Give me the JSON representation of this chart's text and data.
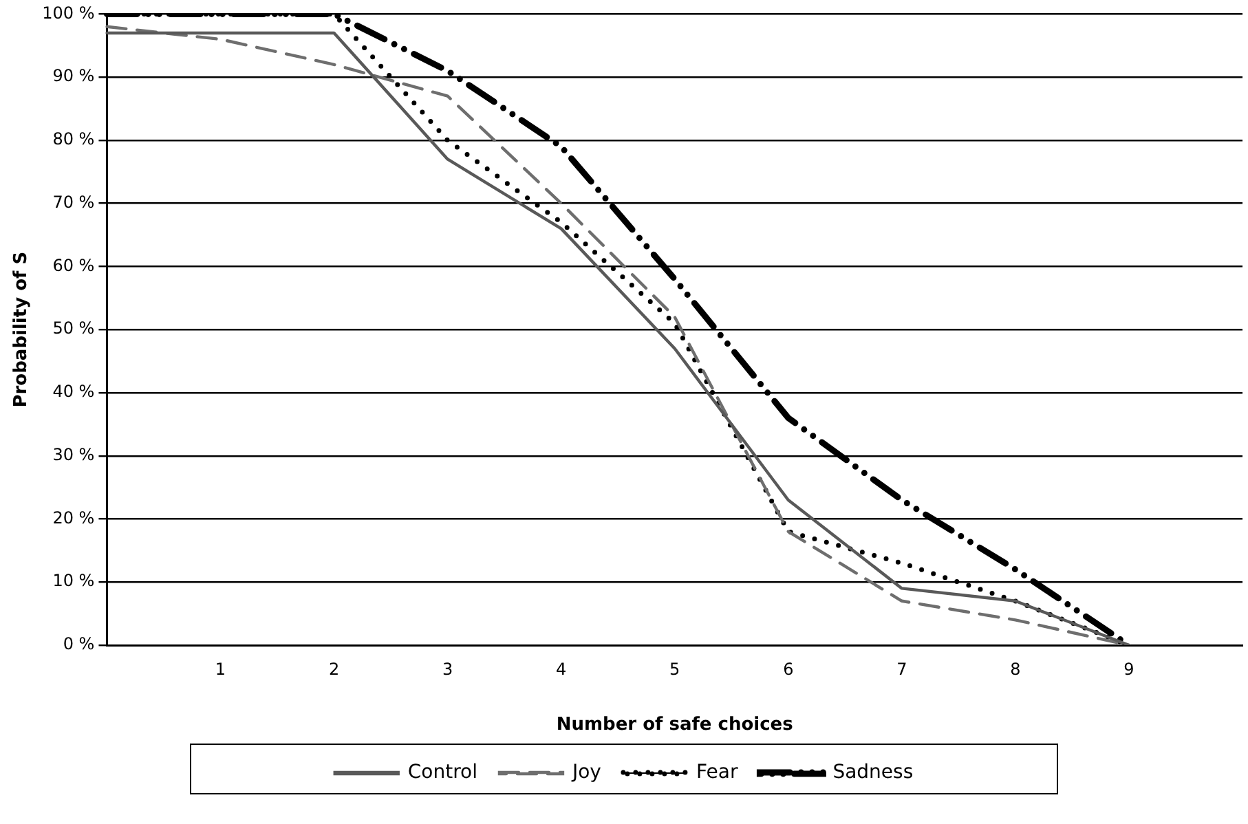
{
  "chart_data": {
    "type": "line",
    "xlabel": "Number of safe choices",
    "ylabel": "Probability of S",
    "categories": [
      null,
      "1",
      "2",
      "3",
      "4",
      "5",
      "6",
      "7",
      "8",
      "9",
      null
    ],
    "series": [
      {
        "name": "Control",
        "color": "#595959",
        "line_style": "solid",
        "values": [
          97,
          97,
          97,
          77,
          66,
          47,
          23,
          9,
          7,
          0,
          null
        ]
      },
      {
        "name": "Joy",
        "color": "#6e6e6e",
        "line_style": "dashed",
        "values": [
          98,
          96,
          92,
          87,
          70,
          52,
          18,
          7,
          4,
          0,
          null
        ]
      },
      {
        "name": "Fear",
        "color": "#000000",
        "line_style": "dotted",
        "values": [
          100,
          100,
          100,
          80,
          67,
          51,
          18,
          13,
          7,
          0,
          null
        ]
      },
      {
        "name": "Sadness",
        "color": "#000000",
        "line_style": "dashdot",
        "values": [
          100,
          100,
          100,
          91,
          79,
          58,
          36,
          23,
          12,
          0,
          null
        ]
      }
    ],
    "ylim": [
      0,
      100
    ],
    "yticks": [
      {
        "value": 0,
        "label": "0 %"
      },
      {
        "value": 10,
        "label": "10 %"
      },
      {
        "value": 20,
        "label": "20 %"
      },
      {
        "value": 30,
        "label": "30 %"
      },
      {
        "value": 40,
        "label": "40 %"
      },
      {
        "value": 50,
        "label": "50 %"
      },
      {
        "value": 60,
        "label": "60 %"
      },
      {
        "value": 70,
        "label": "70 %"
      },
      {
        "value": 80,
        "label": "80 %"
      },
      {
        "value": 90,
        "label": "90 %"
      },
      {
        "value": 100,
        "label": "100 %"
      }
    ],
    "grid": "y",
    "legend": "bottom",
    "marker": "none"
  }
}
